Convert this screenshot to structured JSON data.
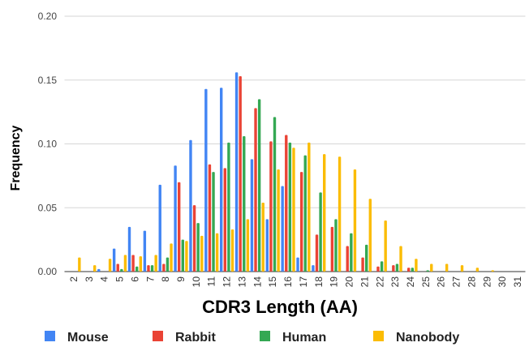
{
  "chart_data": {
    "type": "bar",
    "title": "",
    "xlabel": "CDR3 Length (AA)",
    "ylabel": "Frequency",
    "ylim": [
      0,
      0.2
    ],
    "yticks": [
      "0.00",
      "0.05",
      "0.10",
      "0.15",
      "0.20"
    ],
    "grid": true,
    "legend_position": "bottom",
    "categories": [
      "2",
      "3",
      "4",
      "5",
      "6",
      "7",
      "8",
      "9",
      "10",
      "11",
      "12",
      "13",
      "14",
      "15",
      "16",
      "17",
      "18",
      "19",
      "20",
      "21",
      "22",
      "23",
      "24",
      "25",
      "26",
      "27",
      "28",
      "29",
      "30",
      "31"
    ],
    "series": [
      {
        "name": "Mouse",
        "color": "#4285F4",
        "values": [
          0,
          0,
          0.002,
          0.018,
          0.035,
          0.032,
          0.068,
          0.083,
          0.103,
          0.143,
          0.144,
          0.156,
          0.088,
          0.041,
          0.067,
          0.011,
          0.005,
          0,
          0,
          0,
          0,
          0,
          0,
          0,
          0,
          0,
          0,
          0,
          0,
          0
        ]
      },
      {
        "name": "Rabbit",
        "color": "#EA4335",
        "values": [
          0,
          0,
          0,
          0.006,
          0.013,
          0.005,
          0.006,
          0.07,
          0.052,
          0.084,
          0.081,
          0.153,
          0.128,
          0.102,
          0.107,
          0.078,
          0.029,
          0.035,
          0.02,
          0.011,
          0.004,
          0.005,
          0.003,
          0,
          0,
          0,
          0,
          0,
          0,
          0
        ]
      },
      {
        "name": "Human",
        "color": "#34A853",
        "values": [
          0,
          0,
          0,
          0.002,
          0.004,
          0.005,
          0.011,
          0.025,
          0.038,
          0.078,
          0.101,
          0.106,
          0.135,
          0.121,
          0.101,
          0.091,
          0.062,
          0.041,
          0.03,
          0.021,
          0.008,
          0.006,
          0.003,
          0.001,
          0,
          0,
          0,
          0,
          0,
          0
        ]
      },
      {
        "name": "Nanobody",
        "color": "#FBBC04",
        "values": [
          0.011,
          0.005,
          0.01,
          0.013,
          0.012,
          0.013,
          0.022,
          0.024,
          0.028,
          0.03,
          0.033,
          0.041,
          0.054,
          0.08,
          0.097,
          0.101,
          0.092,
          0.09,
          0.08,
          0.057,
          0.04,
          0.02,
          0.01,
          0.006,
          0.006,
          0.005,
          0.003,
          0.001,
          0,
          0
        ]
      }
    ]
  }
}
